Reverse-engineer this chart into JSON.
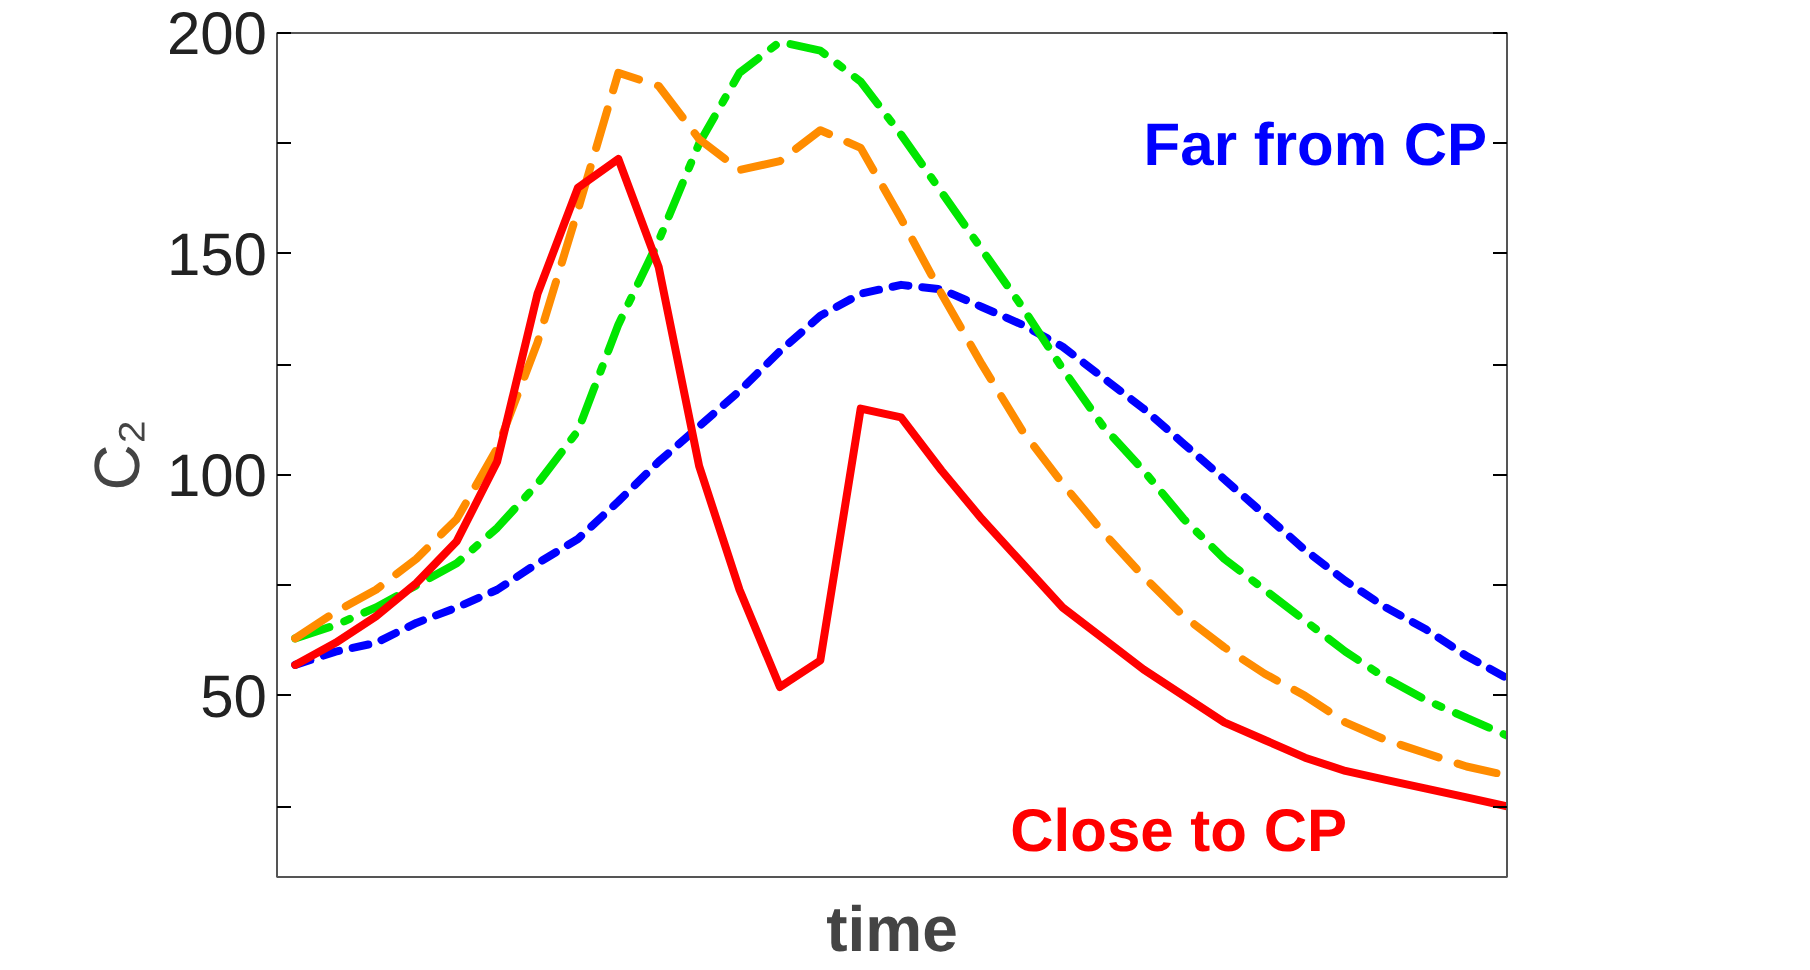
{
  "chart_data": {
    "type": "line",
    "xlabel": "time",
    "ylabel": "C₂",
    "categories": [
      null,
      null,
      null,
      null,
      null,
      null,
      null,
      null,
      null,
      null,
      null,
      null,
      null,
      null,
      null,
      null,
      null,
      null,
      null,
      null,
      null,
      null,
      null,
      null,
      null,
      null,
      null,
      null,
      null,
      null,
      null
    ],
    "ylim": [
      9,
      200
    ],
    "yticks": [
      {
        "value": 25,
        "label": null
      },
      50,
      {
        "value": 75,
        "label": null
      },
      100,
      {
        "value": 125,
        "label": null
      },
      150,
      {
        "value": 175,
        "label": null
      },
      200
    ],
    "tick_labels": "y",
    "grid": false,
    "marker": "none",
    "series": [
      {
        "color": "#0000ff",
        "name": "Far from CP",
        "line_style": "dotted",
        "values": [
          57,
          60,
          62,
          66.5,
          70,
          74,
          80,
          85.5,
          94,
          103,
          111,
          119,
          128,
          136,
          141,
          143,
          142,
          138,
          134,
          129,
          122,
          115,
          107,
          99,
          91,
          83,
          76,
          70,
          65,
          59,
          54
        ]
      },
      {
        "color": "#00e600",
        "line_style": "dashdot",
        "values": [
          63,
          66,
          70,
          75,
          80,
          88,
          98,
          110,
          134,
          153,
          175,
          191,
          198,
          196,
          189,
          177,
          164,
          151,
          138,
          124,
          111,
          101,
          90,
          81,
          74,
          67,
          60,
          54,
          49,
          45,
          41
        ]
      },
      {
        "color": "#ff8c00",
        "line_style": "dashed",
        "values": [
          63,
          69,
          74,
          81,
          90,
          106,
          130,
          160,
          191,
          188,
          176,
          169,
          171,
          178,
          174,
          158,
          141,
          125,
          110,
          98,
          87,
          77,
          68,
          61,
          55,
          50,
          44,
          40,
          37,
          34,
          32
        ]
      },
      {
        "color": "#ff0000",
        "name": "Close to CP",
        "line_style": "solid",
        "values": [
          57,
          62,
          68,
          75.5,
          85,
          103,
          141,
          165,
          171.5,
          147,
          102,
          74,
          52,
          58,
          115,
          113,
          101,
          90,
          80,
          70,
          63,
          56,
          50,
          44,
          40,
          36,
          33,
          31,
          29,
          27,
          25
        ]
      }
    ]
  }
}
